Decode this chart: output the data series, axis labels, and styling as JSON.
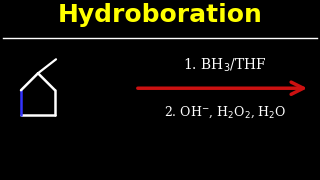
{
  "title": "Hydroboration",
  "title_color": "#FFFF00",
  "title_fontsize": 18,
  "bg_color": "#000000",
  "line1_text": "1. BH$_3$/THF",
  "line2_text": "2. OH$^{-}$, H$_2$O$_2$, H$_2$O",
  "text_color": "#FFFFFF",
  "arrow_color": "#CC1111",
  "separator_color": "#FFFFFF",
  "ring_color": "#FFFFFF",
  "blue_bond_color": "#3333FF",
  "ring_lw": 1.8,
  "sub_lw": 1.6
}
